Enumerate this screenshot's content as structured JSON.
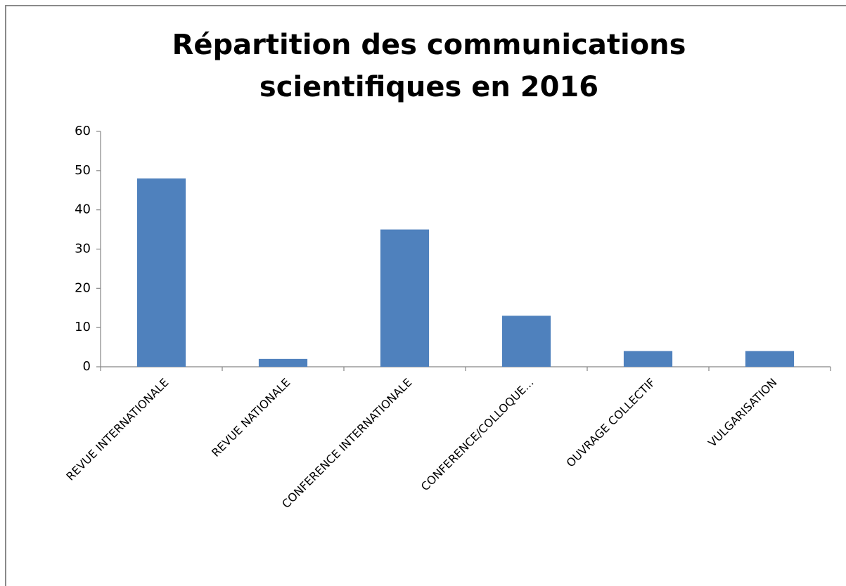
{
  "chart_data": {
    "type": "bar",
    "title": [
      "Répartition des communications",
      "scientifiques en 2016"
    ],
    "categories": [
      "REVUE INTERNATIONALE",
      "REVUE NATIONALE",
      "CONFERENCE INTERNATIONALE",
      "CONFERENCE/COLLOQUE...",
      "OUVRAGE COLLECTIF",
      "VULGARISATION"
    ],
    "values": [
      48,
      2,
      35,
      13,
      4,
      4
    ],
    "color": "#4f81bd",
    "ylim": [
      0,
      60
    ],
    "yticks": [
      0,
      10,
      20,
      30,
      40,
      50,
      60
    ],
    "grid": false
  }
}
